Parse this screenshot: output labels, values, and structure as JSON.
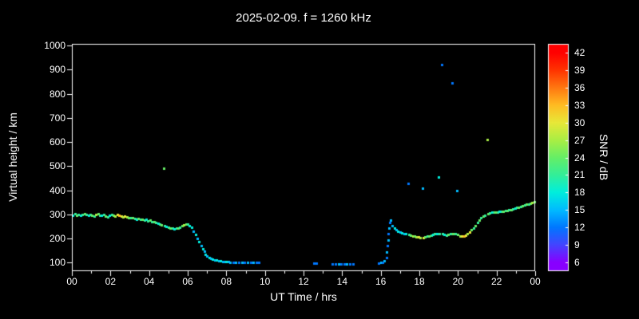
{
  "title": "2025-02-09. f = 1260 kHz",
  "chart_data": {
    "type": "scatter",
    "xlabel": "UT Time / hrs",
    "ylabel": "Virtual height / km",
    "colorbar_label": "SNR / dB",
    "xlim": [
      0,
      24
    ],
    "ylim": [
      100,
      1000
    ],
    "xticks": {
      "values": [
        0,
        2,
        4,
        6,
        8,
        10,
        12,
        14,
        16,
        18,
        20,
        22,
        24
      ],
      "labels": [
        "00",
        "02",
        "04",
        "06",
        "08",
        "10",
        "12",
        "14",
        "16",
        "18",
        "20",
        "22",
        "00"
      ]
    },
    "yticks": [
      100,
      200,
      300,
      400,
      500,
      600,
      700,
      800,
      900,
      1000
    ],
    "background": "#000000",
    "axis_color": "#ffffff",
    "colorbar": {
      "min": 6,
      "max": 42,
      "ticks": [
        6,
        9,
        12,
        15,
        18,
        21,
        24,
        27,
        30,
        33,
        36,
        39,
        42
      ],
      "stops": [
        {
          "v": 6,
          "c": "#8800ff"
        },
        {
          "v": 9,
          "c": "#4444ff"
        },
        {
          "v": 12,
          "c": "#0077ff"
        },
        {
          "v": 15,
          "c": "#00bbff"
        },
        {
          "v": 18,
          "c": "#00eedd"
        },
        {
          "v": 21,
          "c": "#33ee99"
        },
        {
          "v": 24,
          "c": "#66ee66"
        },
        {
          "v": 27,
          "c": "#aaee44"
        },
        {
          "v": 30,
          "c": "#e8e838"
        },
        {
          "v": 33,
          "c": "#ffbb22"
        },
        {
          "v": 36,
          "c": "#ff7711"
        },
        {
          "v": 39,
          "c": "#ff3300"
        },
        {
          "v": 42,
          "c": "#ff0000"
        }
      ]
    },
    "points": [
      [
        0.05,
        298,
        18
      ],
      [
        0.15,
        302,
        21
      ],
      [
        0.25,
        297,
        24
      ],
      [
        0.35,
        300,
        21
      ],
      [
        0.45,
        295,
        18
      ],
      [
        0.55,
        300,
        21
      ],
      [
        0.65,
        304,
        24
      ],
      [
        0.75,
        299,
        21
      ],
      [
        0.85,
        296,
        18
      ],
      [
        0.95,
        301,
        21
      ],
      [
        1.05,
        298,
        24
      ],
      [
        1.15,
        294,
        21
      ],
      [
        1.25,
        299,
        27
      ],
      [
        1.35,
        303,
        24
      ],
      [
        1.45,
        298,
        21
      ],
      [
        1.55,
        295,
        18
      ],
      [
        1.65,
        299,
        21
      ],
      [
        1.75,
        294,
        24
      ],
      [
        1.85,
        291,
        21
      ],
      [
        1.95,
        295,
        18
      ],
      [
        2.05,
        299,
        21
      ],
      [
        2.15,
        297,
        24
      ],
      [
        2.25,
        294,
        27
      ],
      [
        2.35,
        299,
        30
      ],
      [
        2.45,
        297,
        33
      ],
      [
        2.55,
        294,
        30
      ],
      [
        2.65,
        291,
        27
      ],
      [
        2.75,
        294,
        30
      ],
      [
        2.85,
        289,
        27
      ],
      [
        2.95,
        287,
        24
      ],
      [
        3.05,
        285,
        21
      ],
      [
        3.15,
        287,
        24
      ],
      [
        3.25,
        284,
        21
      ],
      [
        3.35,
        281,
        18
      ],
      [
        3.45,
        284,
        24
      ],
      [
        3.55,
        280,
        21
      ],
      [
        3.65,
        281,
        24
      ],
      [
        3.75,
        277,
        21
      ],
      [
        3.85,
        279,
        18
      ],
      [
        3.95,
        274,
        21
      ],
      [
        4.05,
        277,
        24
      ],
      [
        4.15,
        271,
        21
      ],
      [
        4.25,
        269,
        24
      ],
      [
        4.35,
        267,
        21
      ],
      [
        4.45,
        264,
        18
      ],
      [
        4.55,
        259,
        21
      ],
      [
        4.65,
        256,
        24
      ],
      [
        4.75,
        490,
        24
      ],
      [
        4.8,
        252,
        21
      ],
      [
        4.9,
        250,
        18
      ],
      [
        5.0,
        248,
        21
      ],
      [
        5.1,
        245,
        24
      ],
      [
        5.2,
        242,
        21
      ],
      [
        5.3,
        240,
        18
      ],
      [
        5.4,
        242,
        21
      ],
      [
        5.5,
        245,
        24
      ],
      [
        5.6,
        248,
        21
      ],
      [
        5.7,
        252,
        24
      ],
      [
        5.8,
        256,
        27
      ],
      [
        5.9,
        259,
        24
      ],
      [
        6.0,
        261,
        21
      ],
      [
        6.1,
        255,
        18
      ],
      [
        6.2,
        246,
        18
      ],
      [
        6.3,
        231,
        15
      ],
      [
        6.4,
        216,
        18
      ],
      [
        6.5,
        201,
        15
      ],
      [
        6.6,
        186,
        18
      ],
      [
        6.7,
        171,
        15
      ],
      [
        6.78,
        156,
        18
      ],
      [
        6.85,
        146,
        15
      ],
      [
        6.92,
        136,
        18
      ],
      [
        7.0,
        128,
        15
      ],
      [
        7.1,
        122,
        18
      ],
      [
        7.2,
        118,
        15
      ],
      [
        7.3,
        115,
        18
      ],
      [
        7.4,
        112,
        15
      ],
      [
        7.5,
        110,
        18
      ],
      [
        7.6,
        108,
        15
      ],
      [
        7.7,
        107,
        18
      ],
      [
        7.8,
        106,
        15
      ],
      [
        7.9,
        105,
        15
      ],
      [
        8.0,
        105,
        18
      ],
      [
        8.1,
        104,
        15
      ],
      [
        8.2,
        103,
        15
      ],
      [
        8.35,
        103,
        12
      ],
      [
        8.5,
        102,
        15
      ],
      [
        8.65,
        101,
        12
      ],
      [
        8.8,
        101,
        15
      ],
      [
        8.95,
        100,
        12
      ],
      [
        9.1,
        100,
        15
      ],
      [
        9.25,
        100,
        12
      ],
      [
        9.4,
        100,
        15
      ],
      [
        9.55,
        100,
        12
      ],
      [
        9.7,
        100,
        12
      ],
      [
        12.55,
        98,
        12
      ],
      [
        12.65,
        97,
        12
      ],
      [
        13.5,
        95,
        12
      ],
      [
        13.65,
        96,
        12
      ],
      [
        13.8,
        95,
        15
      ],
      [
        13.95,
        96,
        12
      ],
      [
        14.1,
        95,
        12
      ],
      [
        14.25,
        96,
        15
      ],
      [
        14.4,
        95,
        12
      ],
      [
        14.55,
        96,
        12
      ],
      [
        15.9,
        98,
        12
      ],
      [
        16.0,
        100,
        15
      ],
      [
        16.1,
        103,
        12
      ],
      [
        16.2,
        108,
        15
      ],
      [
        16.3,
        120,
        12
      ],
      [
        16.32,
        145,
        15
      ],
      [
        16.35,
        170,
        12
      ],
      [
        16.38,
        195,
        15
      ],
      [
        16.4,
        220,
        12
      ],
      [
        16.42,
        245,
        15
      ],
      [
        16.45,
        265,
        12
      ],
      [
        16.5,
        278,
        15
      ],
      [
        16.6,
        252,
        15
      ],
      [
        16.7,
        242,
        18
      ],
      [
        16.8,
        236,
        15
      ],
      [
        16.9,
        230,
        18
      ],
      [
        17.0,
        228,
        15
      ],
      [
        17.1,
        225,
        18
      ],
      [
        17.2,
        222,
        15
      ],
      [
        17.3,
        220,
        18
      ],
      [
        17.4,
        430,
        12
      ],
      [
        17.45,
        218,
        21
      ],
      [
        17.55,
        215,
        24
      ],
      [
        17.65,
        212,
        27
      ],
      [
        17.75,
        210,
        24
      ],
      [
        17.85,
        208,
        27
      ],
      [
        17.95,
        206,
        30
      ],
      [
        18.05,
        205,
        27
      ],
      [
        18.15,
        410,
        15
      ],
      [
        18.2,
        205,
        30
      ],
      [
        18.3,
        207,
        24
      ],
      [
        18.4,
        210,
        21
      ],
      [
        18.5,
        212,
        24
      ],
      [
        18.6,
        215,
        21
      ],
      [
        18.7,
        218,
        18
      ],
      [
        18.8,
        220,
        21
      ],
      [
        18.9,
        222,
        18
      ],
      [
        19.0,
        455,
        18
      ],
      [
        19.05,
        222,
        21
      ],
      [
        19.15,
        920,
        12
      ],
      [
        19.2,
        219,
        21
      ],
      [
        19.3,
        216,
        18
      ],
      [
        19.4,
        215,
        21
      ],
      [
        19.5,
        217,
        24
      ],
      [
        19.6,
        220,
        21
      ],
      [
        19.7,
        845,
        12
      ],
      [
        19.75,
        222,
        24
      ],
      [
        19.85,
        220,
        21
      ],
      [
        19.95,
        400,
        15
      ],
      [
        20.0,
        216,
        24
      ],
      [
        20.1,
        212,
        27
      ],
      [
        20.2,
        210,
        30
      ],
      [
        20.3,
        212,
        33
      ],
      [
        20.4,
        215,
        30
      ],
      [
        20.5,
        220,
        27
      ],
      [
        20.6,
        228,
        30
      ],
      [
        20.7,
        236,
        24
      ],
      [
        20.8,
        245,
        21
      ],
      [
        20.9,
        255,
        24
      ],
      [
        21.0,
        265,
        21
      ],
      [
        21.1,
        275,
        24
      ],
      [
        21.2,
        285,
        21
      ],
      [
        21.3,
        292,
        24
      ],
      [
        21.4,
        297,
        21
      ],
      [
        21.5,
        610,
        27
      ],
      [
        21.55,
        302,
        24
      ],
      [
        21.65,
        305,
        21
      ],
      [
        21.75,
        308,
        18
      ],
      [
        21.85,
        310,
        21
      ],
      [
        21.95,
        308,
        24
      ],
      [
        22.05,
        310,
        21
      ],
      [
        22.15,
        312,
        18
      ],
      [
        22.25,
        314,
        21
      ],
      [
        22.35,
        312,
        24
      ],
      [
        22.45,
        315,
        21
      ],
      [
        22.55,
        317,
        24
      ],
      [
        22.65,
        319,
        21
      ],
      [
        22.75,
        321,
        24
      ],
      [
        22.85,
        324,
        21
      ],
      [
        22.95,
        327,
        18
      ],
      [
        23.05,
        329,
        21
      ],
      [
        23.15,
        331,
        24
      ],
      [
        23.25,
        334,
        21
      ],
      [
        23.35,
        337,
        24
      ],
      [
        23.45,
        339,
        21
      ],
      [
        23.55,
        341,
        24
      ],
      [
        23.65,
        344,
        21
      ],
      [
        23.75,
        347,
        24
      ],
      [
        23.85,
        350,
        27
      ],
      [
        23.95,
        352,
        24
      ]
    ]
  }
}
